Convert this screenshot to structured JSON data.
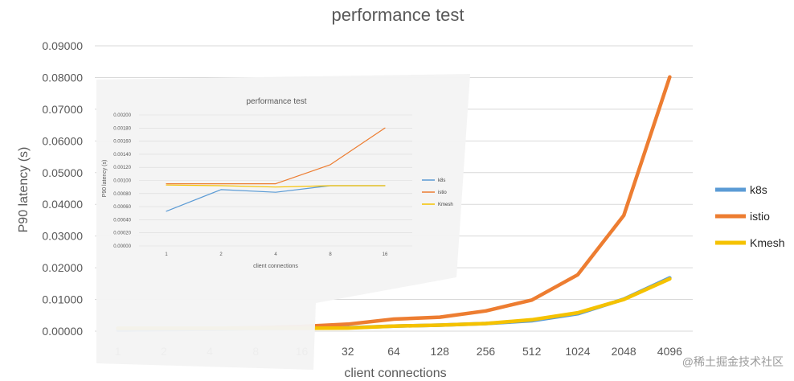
{
  "chart_data": [
    {
      "type": "line",
      "title": "performance test",
      "xlabel": "client connections",
      "ylabel": "P90 latency (s)",
      "categories": [
        "1",
        "2",
        "4",
        "8",
        "16",
        "32",
        "64",
        "128",
        "256",
        "512",
        "1024",
        "2048",
        "4096"
      ],
      "yticks": [
        "0.00000",
        "0.01000",
        "0.02000",
        "0.03000",
        "0.04000",
        "0.05000",
        "0.06000",
        "0.07000",
        "0.08000",
        "0.09000"
      ],
      "ylim": [
        0,
        0.09
      ],
      "grid": true,
      "legend_position": "right",
      "series": [
        {
          "name": "k8s",
          "color": "#5b9bd5",
          "values": [
            0.0003,
            0.0005,
            0.0006,
            0.0008,
            0.0009,
            0.0011,
            0.0016,
            0.0019,
            0.0024,
            0.0033,
            0.0055,
            0.0101,
            0.0168
          ]
        },
        {
          "name": "istio",
          "color": "#ed7d31",
          "values": [
            0.0009,
            0.0009,
            0.0009,
            0.0011,
            0.0015,
            0.0022,
            0.0038,
            0.0044,
            0.0064,
            0.0098,
            0.0178,
            0.0365,
            0.0802
          ]
        },
        {
          "name": "Kmesh",
          "color": "#f5c200",
          "values": [
            0.0009,
            0.0009,
            0.0009,
            0.0009,
            0.0009,
            0.001,
            0.0016,
            0.0019,
            0.0024,
            0.0036,
            0.0058,
            0.01,
            0.0165
          ]
        }
      ]
    },
    {
      "type": "line",
      "title": "performance test",
      "xlabel": "client connections",
      "ylabel": "P90 latency (s)",
      "categories": [
        "1",
        "2",
        "4",
        "8",
        "16"
      ],
      "yticks": [
        "0.00000",
        "0.00020",
        "0.00040",
        "0.00060",
        "0.00080",
        "0.00100",
        "0.00120",
        "0.00140",
        "0.00160",
        "0.00180",
        "0.00200"
      ],
      "ylim": [
        0,
        0.002
      ],
      "grid": true,
      "legend_position": "right",
      "series": [
        {
          "name": "k8s",
          "color": "#5b9bd5",
          "values": [
            0.00053,
            0.00086,
            0.00082,
            0.00092,
            0.00092
          ]
        },
        {
          "name": "istio",
          "color": "#ed7d31",
          "values": [
            0.00095,
            0.00095,
            0.00095,
            0.00124,
            0.0018
          ]
        },
        {
          "name": "Kmesh",
          "color": "#f5c200",
          "values": [
            0.00093,
            0.00092,
            0.0009,
            0.00092,
            0.00092
          ]
        }
      ]
    }
  ],
  "watermark": "@稀土掘金技术社区"
}
